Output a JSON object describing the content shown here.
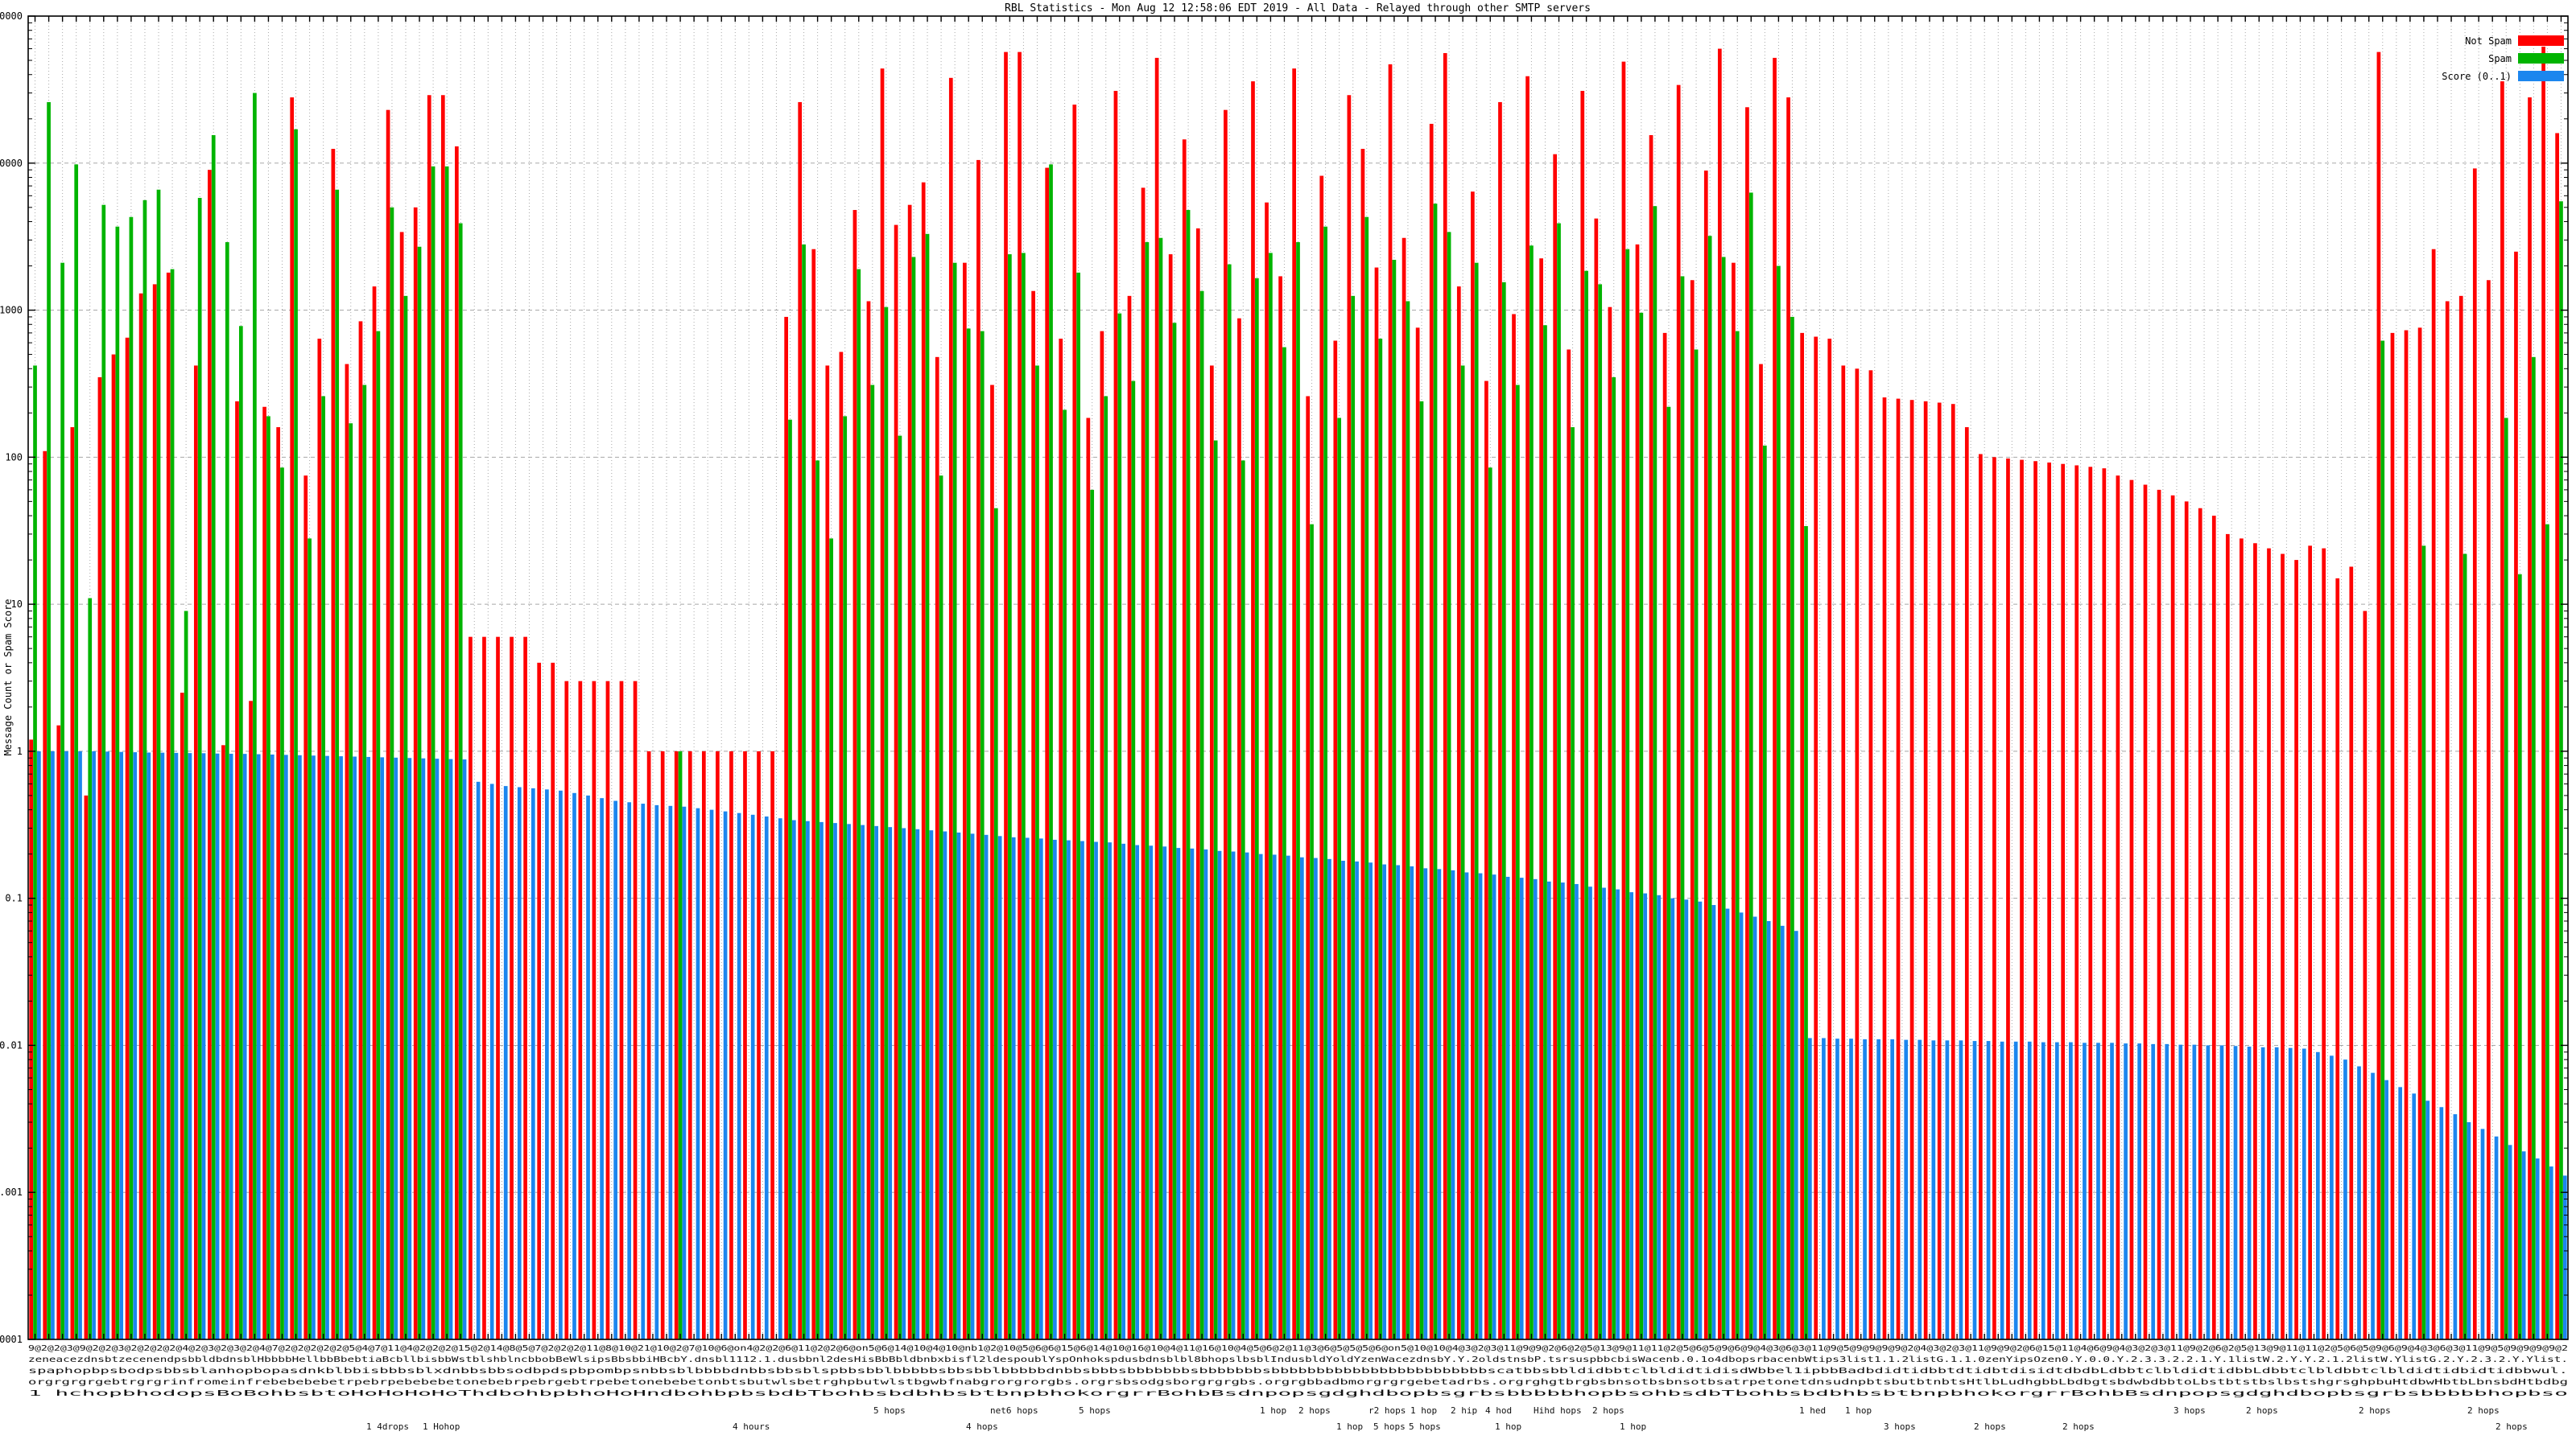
{
  "title": "RBL Statistics - Mon Aug 12 12:58:06 EDT 2019 - All Data - Relayed through other SMTP servers",
  "y_axis": {
    "label": "Message Count or Spam Score",
    "ticks": [
      "100000",
      "10000",
      "1000",
      "100",
      "10",
      "1",
      "0.1",
      "0.01",
      "0.001",
      "0.0001"
    ]
  },
  "legend": [
    {
      "label": "Not Spam",
      "color": "#ff0000"
    },
    {
      "label": "Spam",
      "color": "#00b400"
    },
    {
      "label": "Score (0..1)",
      "color": "#1c86ee"
    }
  ],
  "colors": {
    "not_spam": "#ff0000",
    "spam": "#00b400",
    "score": "#1c86ee",
    "grid": "#a8a8a8",
    "border": "#000000",
    "background": "#ffffff"
  },
  "x_axis": {
    "note": "185 RBL host-name tick labels, heavily overlapping and illegible",
    "overlapped_label_strips": [
      "9@2@2@3@9@2@2@3@2@2@2@2@4@2@3@2@3@2@4@7@2@2@2@2@2@5@4@7@11@4@2@2@2@15@2@14@8@5@7@2@2@2@11@8@10@21@10@2@7@10@6@on4@2@2@6@11@2@2@6@on5@6@14@10@4@10@nb1@2@10@5@6@6@15@6@14@10@16@10@4@11@16@10@4@5@6@2@11@3@6@5@5@5@6@on5@10@10@4@3@2@3@11@9@9@2@6@2@5@13@9@11@11@2@5@6@5@9@6@9@4@3@6@3@11@9@5@9@9@9@9@2@4@3@2@3@11@9@9@2@6@15@11@4@6@9@4@3@2@3@11@9@2@6@2@5@13@9@11@11@2@5@6@5@9@6@9@4@3@6@3@11@9@5@9@9@9@9@2",
      "zeneacezdnsbtzecenendpsbbldbdnsblHbbbbHellbbBbebtiaBcbllbisbbWstblshblncbbobBeWlsipsBbsbbiHBcbY.dnsbl1112.1.dusbbnl2desHisBbBbldbnbxbisfl2ldespoublYspOnhokspdusbdnsblbl8bhopslbsblIndusbldYoldYzenWacezdnsbY.Y.2oldstnsbP.tsrsuspbbcbisWacenb.0.1o4dbopsrbacenbWtips3list1.1.2listG.1.1.0zenYipsOzen0.Y.0.0.Y.2.3.3.2.2.1.Y.1listW.2.Y.Y.2.1.2listW.YlistG.2.Y.2.3.2.Y.Ylist.",
      "spaphopbpsbodpsbbsblanhopbopasdnkblbbisbbbsblxdnbbsbbsodbpdspbpombpsnbbsblbbbbdnbbsbbsblspbbsbblbbbbbsbbsbblbbbbbdnbbsbbbsbbbbbbbsbbbbbbbsbbbbbbbbbbbbbbbbbbbbbbbbscatbbsbbldidbbtclbldidtidisdWbbel1ipbbBadbdidtidbbtdtidbtdisidtdbdbLdbbtclbldidtidbbLdbbtclbldbbtclbldidtidbidtidbbwul.",
      "orgrgrgrgebtrgrgrinfromeinfrebebebebetrpebrpebebebetonebebrpebrgebtrpebetonebebetonbtsbutwlsbetrghpbutwlstbgwbfnabgrorgrorgbs.orgrsbsodgsborgrgrgbs.orgrgbbadbmorgrgrgebetadrbs.orgrghgtbrgbsbnsotbsbnsotbsatrpetonetdnsudnpbtsbutbtnbtsHtlbLudhgbbLbdbgtsbdwbdbbtoLbstbtstbslbstshgrsghpbuHtdbwHbtbLbnsbdHtbdbg",
      "1 hchopbhodopsBoBohbsbtoHoHoHoHoThdbohbpbhoHoHndbohbpbsbdbTbohbsbdbhbsbtbnpbhokorgrrBohbBsdnpopsgdghdbopbsgrbsbbbbbhopbsohbsdbTbohbsbdbhbsbtbnpbhokorgrrBohbBsdnpopsgdghdbopbsgrbsbbbbbhopbso"
    ],
    "readable_fragments_row1": [
      {
        "x": 1085,
        "text": "5 hops"
      },
      {
        "x": 1230,
        "text": "net6 hops"
      },
      {
        "x": 1340,
        "text": "5 hops"
      },
      {
        "x": 1565,
        "text": "1 hop"
      },
      {
        "x": 1613,
        "text": "2 hops"
      },
      {
        "x": 1700,
        "text": "r2 hops"
      },
      {
        "x": 1752,
        "text": "1 hop"
      },
      {
        "x": 1802,
        "text": "2 hip"
      },
      {
        "x": 1845,
        "text": "4 hod"
      },
      {
        "x": 1905,
        "text": "Hihd hops"
      },
      {
        "x": 1978,
        "text": "2 hops"
      },
      {
        "x": 2235,
        "text": "1 hed"
      },
      {
        "x": 2292,
        "text": "1 hop"
      },
      {
        "x": 2700,
        "text": "3 hops"
      },
      {
        "x": 2790,
        "text": "2 hops"
      },
      {
        "x": 2930,
        "text": "2 hops"
      },
      {
        "x": 3065,
        "text": "2 hops"
      }
    ],
    "readable_fragments_row2": [
      {
        "x": 455,
        "text": "1 4drops"
      },
      {
        "x": 525,
        "text": "1 Hohop"
      },
      {
        "x": 910,
        "text": "4 hours"
      },
      {
        "x": 1200,
        "text": "4 hops"
      },
      {
        "x": 1660,
        "text": "1 hop"
      },
      {
        "x": 1706,
        "text": "5 hops"
      },
      {
        "x": 1750,
        "text": "5 hops"
      },
      {
        "x": 1857,
        "text": "1 hop"
      },
      {
        "x": 2012,
        "text": "1 hop"
      },
      {
        "x": 2340,
        "text": "3 hops"
      },
      {
        "x": 2452,
        "text": "2 hops"
      },
      {
        "x": 2562,
        "text": "2 hops"
      },
      {
        "x": 3100,
        "text": "2 hops"
      }
    ]
  },
  "chart_data": {
    "type": "bar",
    "title": "RBL Statistics - Mon Aug 12 12:58:06 EDT 2019 - All Data - Relayed through other SMTP servers",
    "ylabel": "Message Count or Spam Score",
    "y_scale": "log10",
    "ylim": [
      0.0001,
      100000
    ],
    "grid": true,
    "legend_position": "top-right",
    "series_order": [
      "not_spam",
      "spam",
      "score"
    ],
    "cluster_count": 185,
    "clusters": [
      [
        1.2,
        420,
        1.0
      ],
      [
        110,
        26000,
        1.0
      ],
      [
        1.5,
        2100,
        1.0
      ],
      [
        160,
        9800,
        1.0
      ],
      [
        0.5,
        11,
        1.0
      ],
      [
        350,
        5200,
        0.995
      ],
      [
        500,
        3700,
        0.99
      ],
      [
        650,
        4300,
        0.985
      ],
      [
        1300,
        5600,
        0.98
      ],
      [
        1500,
        6600,
        0.978
      ],
      [
        1800,
        1900,
        0.975
      ],
      [
        2.5,
        9,
        0.972
      ],
      [
        420,
        5800,
        0.97
      ],
      [
        9000,
        15500,
        0.965
      ],
      [
        1.1,
        2900,
        0.962
      ],
      [
        240,
        780,
        0.96
      ],
      [
        2.2,
        30000,
        0.955
      ],
      [
        220,
        190,
        0.95
      ],
      [
        160,
        85,
        0.945
      ],
      [
        28000,
        17000,
        0.94
      ],
      [
        75,
        28,
        0.935
      ],
      [
        640,
        260,
        0.93
      ],
      [
        12500,
        6600,
        0.925
      ],
      [
        430,
        170,
        0.92
      ],
      [
        840,
        310,
        0.915
      ],
      [
        1450,
        720,
        0.91
      ],
      [
        23000,
        5000,
        0.905
      ],
      [
        3400,
        1250,
        0.9
      ],
      [
        5000,
        2700,
        0.895
      ],
      [
        29000,
        9500,
        0.89
      ],
      [
        29000,
        9500,
        0.885
      ],
      [
        13000,
        3900,
        0.88
      ],
      [
        6,
        0,
        0.62
      ],
      [
        6,
        0,
        0.6
      ],
      [
        6,
        0,
        0.58
      ],
      [
        6,
        0,
        0.57
      ],
      [
        6,
        0,
        0.56
      ],
      [
        4,
        0,
        0.55
      ],
      [
        4,
        0,
        0.54
      ],
      [
        3,
        0,
        0.52
      ],
      [
        3,
        0,
        0.5
      ],
      [
        3,
        0,
        0.48
      ],
      [
        3,
        0,
        0.46
      ],
      [
        3,
        0,
        0.45
      ],
      [
        3,
        0,
        0.44
      ],
      [
        1,
        0,
        0.43
      ],
      [
        1,
        0,
        0.425
      ],
      [
        1,
        1,
        0.42
      ],
      [
        1,
        0,
        0.41
      ],
      [
        1,
        0,
        0.4
      ],
      [
        1,
        0,
        0.39
      ],
      [
        1,
        0,
        0.38
      ],
      [
        1,
        0,
        0.37
      ],
      [
        1,
        0,
        0.36
      ],
      [
        1,
        0,
        0.35
      ],
      [
        900,
        180,
        0.34
      ],
      [
        26000,
        2800,
        0.335
      ],
      [
        2600,
        95,
        0.33
      ],
      [
        420,
        28,
        0.325
      ],
      [
        520,
        190,
        0.32
      ],
      [
        4800,
        1900,
        0.315
      ],
      [
        1150,
        310,
        0.31
      ],
      [
        44000,
        1050,
        0.305
      ],
      [
        3800,
        140,
        0.3
      ],
      [
        5200,
        2300,
        0.295
      ],
      [
        7400,
        3300,
        0.29
      ],
      [
        480,
        75,
        0.285
      ],
      [
        38000,
        2100,
        0.28
      ],
      [
        2100,
        750,
        0.275
      ],
      [
        10500,
        720,
        0.27
      ],
      [
        310,
        45,
        0.265
      ],
      [
        57000,
        2400,
        0.26
      ],
      [
        57000,
        2450,
        0.258
      ],
      [
        1350,
        420,
        0.255
      ],
      [
        9300,
        9800,
        0.25
      ],
      [
        640,
        210,
        0.248
      ],
      [
        25000,
        1800,
        0.245
      ],
      [
        185,
        60,
        0.242
      ],
      [
        720,
        260,
        0.24
      ],
      [
        31000,
        950,
        0.235
      ],
      [
        1250,
        330,
        0.23
      ],
      [
        6800,
        2900,
        0.228
      ],
      [
        52000,
        3100,
        0.225
      ],
      [
        2400,
        820,
        0.22
      ],
      [
        14500,
        4800,
        0.218
      ],
      [
        3600,
        1350,
        0.215
      ],
      [
        420,
        130,
        0.21
      ],
      [
        23000,
        2050,
        0.208
      ],
      [
        880,
        95,
        0.205
      ],
      [
        36000,
        1650,
        0.2
      ],
      [
        5400,
        2450,
        0.198
      ],
      [
        1700,
        560,
        0.195
      ],
      [
        44000,
        2900,
        0.19
      ],
      [
        260,
        35,
        0.188
      ],
      [
        8200,
        3700,
        0.185
      ],
      [
        620,
        185,
        0.18
      ],
      [
        29000,
        1250,
        0.178
      ],
      [
        12500,
        4300,
        0.175
      ],
      [
        1950,
        640,
        0.17
      ],
      [
        47000,
        2200,
        0.168
      ],
      [
        3100,
        1150,
        0.165
      ],
      [
        760,
        240,
        0.16
      ],
      [
        18500,
        5300,
        0.158
      ],
      [
        56000,
        3400,
        0.155
      ],
      [
        1450,
        420,
        0.15
      ],
      [
        6400,
        2100,
        0.148
      ],
      [
        330,
        85,
        0.145
      ],
      [
        26000,
        1550,
        0.14
      ],
      [
        940,
        310,
        0.138
      ],
      [
        39000,
        2750,
        0.135
      ],
      [
        2250,
        790,
        0.13
      ],
      [
        11500,
        3900,
        0.128
      ],
      [
        540,
        160,
        0.125
      ],
      [
        31000,
        1850,
        0.12
      ],
      [
        4200,
        1500,
        0.118
      ],
      [
        1050,
        350,
        0.115
      ],
      [
        49000,
        2600,
        0.11
      ],
      [
        2800,
        960,
        0.108
      ],
      [
        15500,
        5100,
        0.105
      ],
      [
        700,
        220,
        0.1
      ],
      [
        34000,
        1700,
        0.098
      ],
      [
        1600,
        540,
        0.095
      ],
      [
        8900,
        3200,
        0.09
      ],
      [
        60000,
        2300,
        0.085
      ],
      [
        2100,
        720,
        0.08
      ],
      [
        24000,
        6300,
        0.075
      ],
      [
        430,
        120,
        0.07
      ],
      [
        52000,
        2000,
        0.065
      ],
      [
        28000,
        900,
        0.06
      ],
      [
        700,
        34,
        0.0112
      ],
      [
        660,
        0,
        0.0112
      ],
      [
        640,
        0,
        0.0111
      ],
      [
        420,
        0,
        0.0111
      ],
      [
        400,
        0,
        0.011
      ],
      [
        390,
        0,
        0.011
      ],
      [
        255,
        0,
        0.011
      ],
      [
        250,
        0,
        0.0109
      ],
      [
        245,
        0,
        0.0109
      ],
      [
        240,
        0,
        0.0108
      ],
      [
        235,
        0,
        0.0108
      ],
      [
        230,
        0,
        0.0108
      ],
      [
        160,
        0,
        0.0107
      ],
      [
        105,
        0,
        0.0107
      ],
      [
        100,
        0,
        0.0106
      ],
      [
        98,
        0,
        0.0106
      ],
      [
        96,
        0,
        0.0106
      ],
      [
        94,
        0,
        0.0105
      ],
      [
        92,
        0,
        0.0105
      ],
      [
        90,
        0,
        0.0105
      ],
      [
        88,
        0,
        0.0104
      ],
      [
        86,
        0,
        0.0104
      ],
      [
        84,
        0,
        0.0104
      ],
      [
        75,
        0,
        0.0103
      ],
      [
        70,
        0,
        0.0103
      ],
      [
        65,
        0,
        0.0102
      ],
      [
        60,
        0,
        0.0102
      ],
      [
        55,
        0,
        0.0101
      ],
      [
        50,
        0,
        0.0101
      ],
      [
        45,
        0,
        0.01
      ],
      [
        40,
        0,
        0.01
      ],
      [
        30,
        0,
        0.0099
      ],
      [
        28,
        0,
        0.0098
      ],
      [
        26,
        0,
        0.0097
      ],
      [
        24,
        0,
        0.0097
      ],
      [
        22,
        0,
        0.0096
      ],
      [
        20,
        0,
        0.0095
      ],
      [
        25,
        0,
        0.009
      ],
      [
        24,
        0,
        0.0085
      ],
      [
        15,
        0,
        0.008
      ],
      [
        18,
        0,
        0.0072
      ],
      [
        9,
        0,
        0.0065
      ],
      [
        57000,
        620,
        0.0058
      ],
      [
        700,
        0,
        0.0052
      ],
      [
        730,
        0,
        0.0047
      ],
      [
        760,
        25,
        0.0042
      ],
      [
        2600,
        0,
        0.0038
      ],
      [
        1150,
        0,
        0.0034
      ],
      [
        1250,
        22,
        0.003
      ],
      [
        9200,
        0,
        0.0027
      ],
      [
        1600,
        0,
        0.0024
      ],
      [
        36000,
        185,
        0.0021
      ],
      [
        2500,
        16,
        0.0019
      ],
      [
        28000,
        480,
        0.0017
      ],
      [
        62000,
        35,
        0.0015
      ],
      [
        16000,
        5500,
        0.0013
      ]
    ]
  }
}
